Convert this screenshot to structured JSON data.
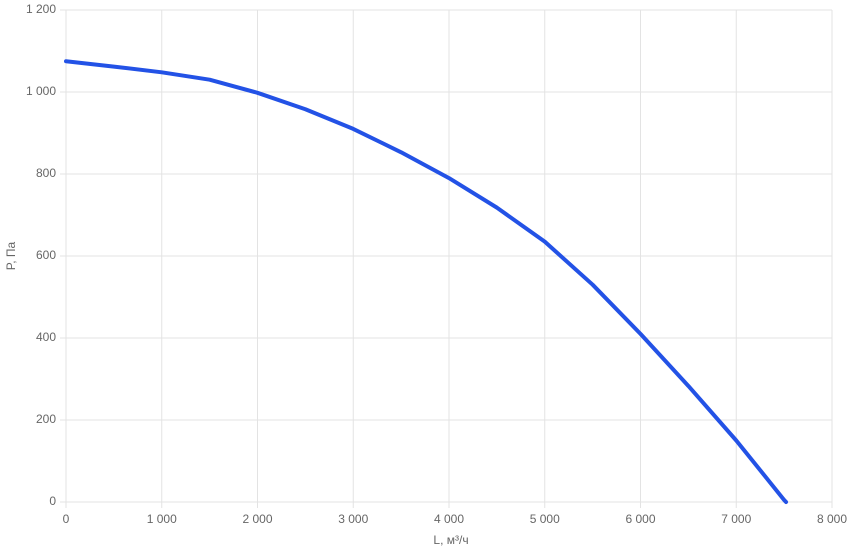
{
  "chart_data": {
    "type": "line",
    "x_label": "L, м³/ч",
    "y_label": "P, Па",
    "x": [
      0,
      500,
      1000,
      1500,
      2000,
      2500,
      3000,
      3500,
      4000,
      4500,
      5000,
      5500,
      6000,
      6500,
      7000,
      7500,
      7520
    ],
    "values": [
      1075,
      1062,
      1048,
      1030,
      998,
      958,
      910,
      853,
      790,
      718,
      635,
      530,
      410,
      283,
      150,
      5,
      0
    ],
    "color": "#2352e6",
    "xlim": [
      0,
      8000
    ],
    "xticks": [
      0,
      {
        "value": 1000,
        "label": "1 000"
      },
      {
        "value": 2000,
        "label": "2 000"
      },
      {
        "value": 3000,
        "label": "3 000"
      },
      {
        "value": 4000,
        "label": "4 000"
      },
      {
        "value": 5000,
        "label": "5 000"
      },
      {
        "value": 6000,
        "label": "6 000"
      },
      {
        "value": 7000,
        "label": "7 000"
      },
      {
        "value": 8000,
        "label": "8 000"
      }
    ],
    "ylim": [
      0,
      1200
    ],
    "yticks": [
      0,
      200,
      400,
      600,
      800,
      {
        "value": 1000,
        "label": "1 000"
      },
      {
        "value": 1200,
        "label": "1 200"
      }
    ],
    "grid": true
  }
}
